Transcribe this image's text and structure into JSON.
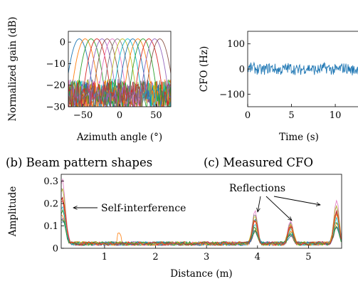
{
  "chart_data": [
    {
      "type": "line",
      "caption": "(b) Beam pattern shapes",
      "xlabel": "Azimuth angle (°)",
      "ylabel": "Normalized gain (dB)",
      "xlim": [
        -70,
        70
      ],
      "ylim": [
        -30,
        5
      ],
      "xticks": [
        -50,
        0,
        50
      ],
      "xtick_labels": [
        "−50",
        "0",
        "50"
      ],
      "yticks": [
        0,
        -10,
        -20,
        -30
      ],
      "ytick_labels": [
        "0",
        "−10",
        "−20",
        "−30"
      ],
      "beam_centers": [
        -55,
        -47,
        -39,
        -31,
        -24,
        -17,
        -10,
        -3,
        4,
        11,
        18,
        25,
        32,
        40,
        48,
        55
      ],
      "series_colors": [
        "#1f77b4",
        "#ff7f0e",
        "#2ca02c",
        "#d62728",
        "#9467bd",
        "#8c564b",
        "#e377c2",
        "#7f7f7f",
        "#bcbd22",
        "#17becf",
        "#1f77b4",
        "#ff7f0e",
        "#2ca02c",
        "#d62728",
        "#9467bd",
        "#8c564b"
      ]
    },
    {
      "type": "line",
      "caption": "(c) Measured CFO",
      "xlabel": "Time (s)",
      "ylabel": "CFO (Hz)",
      "xlim": [
        0,
        13
      ],
      "ylim": [
        -150,
        150
      ],
      "xticks": [
        0,
        5,
        10
      ],
      "xtick_labels": [
        "0",
        "5",
        "10"
      ],
      "yticks": [
        100,
        0,
        -100
      ],
      "ytick_labels": [
        "100",
        "0",
        "−100"
      ],
      "series": [
        {
          "color": "#1f77b4",
          "mean": 0,
          "spread": 22
        }
      ]
    },
    {
      "type": "line",
      "xlabel": "Distance (m)",
      "ylabel": "Amplitude",
      "xlim": [
        0.15,
        5.65
      ],
      "ylim": [
        0,
        0.33
      ],
      "xticks": [
        1,
        2,
        3,
        4,
        5
      ],
      "xtick_labels": [
        "1",
        "2",
        "3",
        "4",
        "5"
      ],
      "yticks": [
        0,
        0.1,
        0.2,
        0.3
      ],
      "ytick_labels": [
        "0",
        "0.1",
        "0.2",
        "0.3"
      ],
      "peaks": [
        {
          "x": 0.17,
          "y": 0.29
        },
        {
          "x": 3.95,
          "y": 0.15
        },
        {
          "x": 4.65,
          "y": 0.11
        },
        {
          "x": 5.55,
          "y": 0.2
        }
      ],
      "annotations": [
        {
          "text": "Self-interference",
          "arrow_to": [
            0.2,
            0.2
          ]
        },
        {
          "text": "Reflections",
          "arrow_to": [
            [
              3.95,
              0.16
            ],
            [
              4.65,
              0.12
            ],
            [
              5.5,
              0.21
            ]
          ]
        }
      ]
    }
  ]
}
